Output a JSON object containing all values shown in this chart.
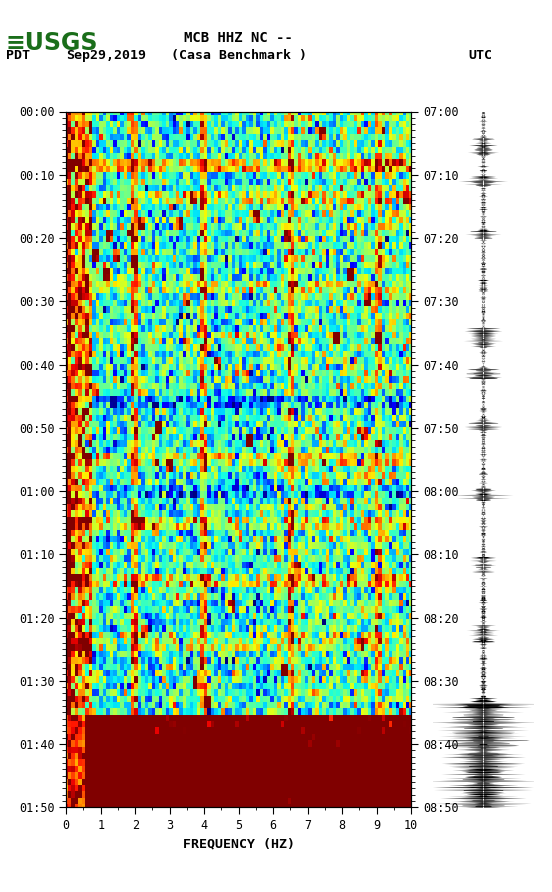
{
  "title_line1": "MCB HHZ NC --",
  "title_line2": "(Casa Benchmark )",
  "date_label": "Sep29,2019",
  "tz_left": "PDT",
  "tz_right": "UTC",
  "xlabel": "FREQUENCY (HZ)",
  "freq_min": 0,
  "freq_max": 10,
  "left_ticks": [
    "00:00",
    "00:10",
    "00:20",
    "00:30",
    "00:40",
    "00:50",
    "01:00",
    "01:10",
    "01:20",
    "01:30",
    "01:40",
    "01:50"
  ],
  "right_ticks": [
    "07:00",
    "07:10",
    "07:20",
    "07:30",
    "07:40",
    "07:50",
    "08:00",
    "08:10",
    "08:20",
    "08:30",
    "08:40",
    "08:50"
  ],
  "bg_color": "#ffffff",
  "spectrogram_cmap": "jet",
  "usgs_green": "#1a6e1a",
  "figsize": [
    5.52,
    8.92
  ],
  "dpi": 100,
  "vmin": -1.0,
  "vmax": 3.5
}
